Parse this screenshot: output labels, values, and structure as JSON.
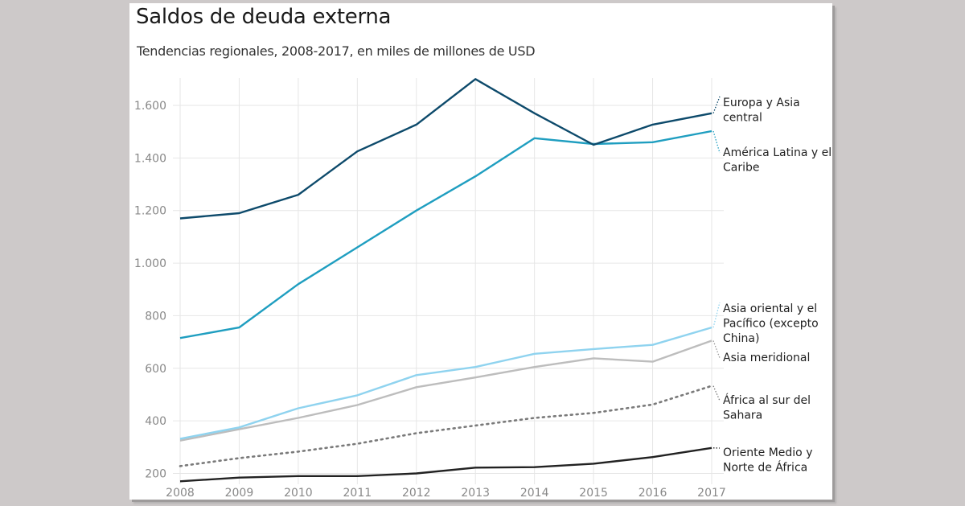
{
  "chart_data": {
    "type": "line",
    "title": "Saldos de deuda externa",
    "subtitle": "Tendencias regionales, 2008-2017, en miles de millones de USD",
    "xlabel": "",
    "ylabel": "",
    "x": [
      2008,
      2009,
      2010,
      2011,
      2012,
      2013,
      2014,
      2015,
      2016,
      2017
    ],
    "x_tick_labels": [
      "2008",
      "2009",
      "2010",
      "2011",
      "2012",
      "2013",
      "2014",
      "2015",
      "2016",
      "2017"
    ],
    "y_ticks": [
      200,
      400,
      600,
      800,
      1000,
      1200,
      1400,
      1600
    ],
    "y_tick_labels": [
      "200",
      "400",
      "600",
      "800",
      "1.000",
      "1.200",
      "1.400",
      "1.600"
    ],
    "ylim": [
      170,
      1700
    ],
    "grid": true,
    "legend": "right (inline labels at line ends)",
    "series": [
      {
        "name": "Europa y Asia central",
        "label_lines": [
          "Europa y Asia",
          "central"
        ],
        "color": "#0d4a6b",
        "dash": "solid",
        "values": [
          1170,
          1190,
          1260,
          1425,
          1527,
          1700,
          1570,
          1450,
          1527,
          1570
        ]
      },
      {
        "name": "América Latina y el Caribe",
        "label_lines": [
          "América Latina y el",
          "Caribe"
        ],
        "color": "#1f9ec0",
        "dash": "solid",
        "values": [
          715,
          755,
          920,
          1060,
          1200,
          1330,
          1475,
          1453,
          1460,
          1502
        ]
      },
      {
        "name": "Asia oriental y el Pacífico (excepto China)",
        "label_lines": [
          "Asia oriental y el",
          "Pacífico (excepto",
          "China)"
        ],
        "color": "#8fd3ef",
        "dash": "solid",
        "values": [
          332,
          375,
          448,
          497,
          574,
          605,
          655,
          673,
          689,
          755
        ]
      },
      {
        "name": "Asia meridional",
        "label_lines": [
          "Asia meridional"
        ],
        "color": "#bdbdbd",
        "dash": "solid",
        "values": [
          325,
          368,
          411,
          460,
          528,
          565,
          605,
          638,
          625,
          705
        ]
      },
      {
        "name": "África al sur del Sahara",
        "label_lines": [
          "África al sur del",
          "Sahara"
        ],
        "color": "#7a7a7a",
        "dash": "dotted",
        "values": [
          228,
          258,
          283,
          313,
          353,
          382,
          411,
          430,
          462,
          533
        ]
      },
      {
        "name": "Oriente Medio y Norte de África",
        "label_lines": [
          "Oriente Medio y",
          "Norte de África"
        ],
        "color": "#222222",
        "dash": "solid",
        "values": [
          170,
          184,
          190,
          190,
          200,
          222,
          224,
          237,
          262,
          297
        ]
      }
    ]
  }
}
